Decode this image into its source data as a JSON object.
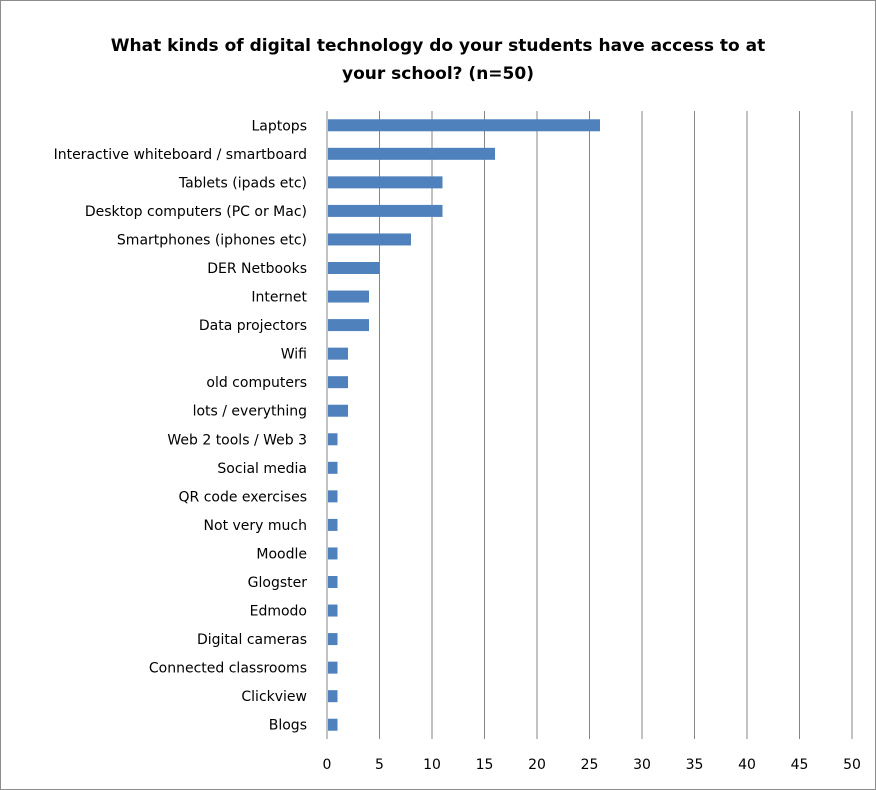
{
  "chart_data": {
    "type": "bar",
    "orientation": "horizontal",
    "title_lines": [
      "What kinds of digital technology do your students have access to at",
      "your school? (n=50)"
    ],
    "categories": [
      "Laptops",
      "Interactive whiteboard / smartboard",
      "Tablets (ipads etc)",
      "Desktop computers (PC or Mac)",
      "Smartphones (iphones etc)",
      "DER Netbooks",
      "Internet",
      "Data projectors",
      "Wifi",
      "old computers",
      "lots / everything",
      "Web 2 tools / Web 3",
      "Social media",
      "QR code exercises",
      "Not very much",
      "Moodle",
      "Glogster",
      "Edmodo",
      "Digital cameras",
      "Connected classrooms",
      "Clickview",
      "Blogs"
    ],
    "values": [
      26,
      16,
      11,
      11,
      8,
      5,
      4,
      4,
      2,
      2,
      2,
      1,
      1,
      1,
      1,
      1,
      1,
      1,
      1,
      1,
      1,
      1
    ],
    "xlim": [
      0,
      50
    ],
    "xticks": [
      0,
      5,
      10,
      15,
      20,
      25,
      30,
      35,
      40,
      45,
      50
    ],
    "grid": "vertical",
    "legend": "none",
    "bar_color": "#4f81bd",
    "grid_color": "#868686"
  }
}
